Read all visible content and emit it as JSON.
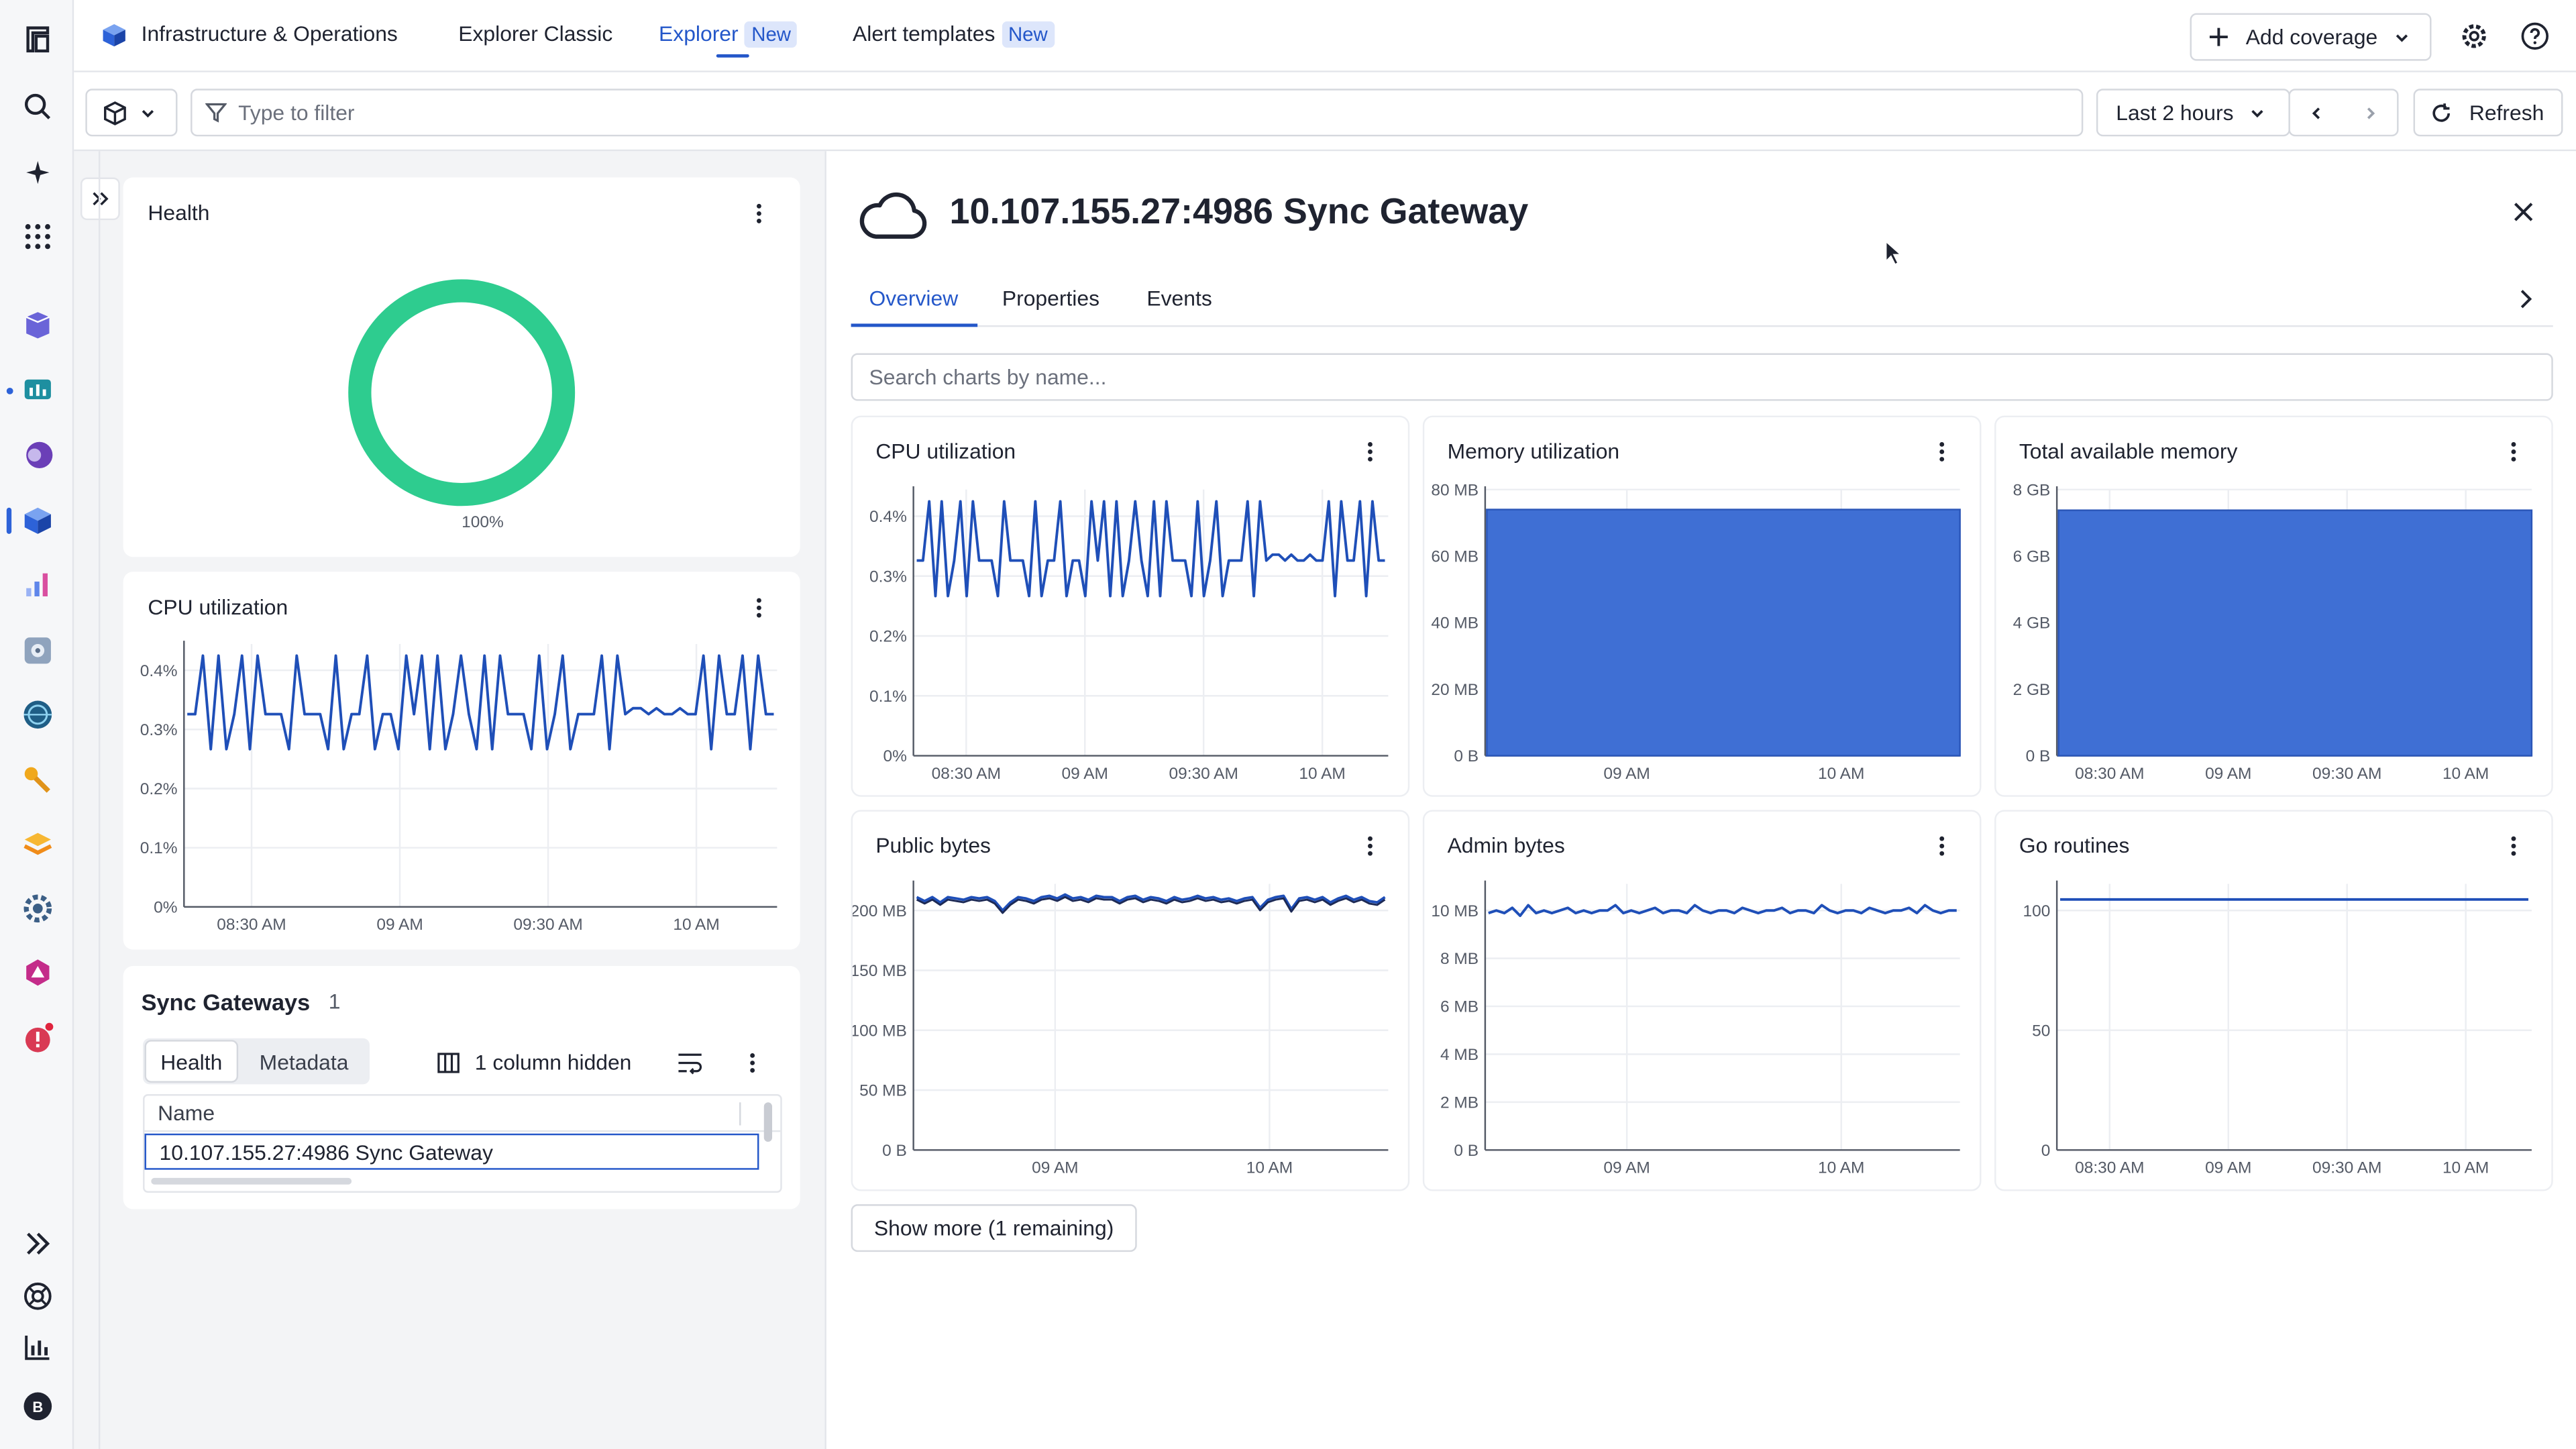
{
  "header": {
    "app_title": "Infrastructure & Operations",
    "tabs": [
      {
        "label": "Explorer Classic",
        "badge": ""
      },
      {
        "label": "Explorer",
        "badge": "New"
      },
      {
        "label": "Alert templates",
        "badge": "New"
      }
    ],
    "add_coverage_label": "Add coverage"
  },
  "filterbar": {
    "placeholder": "Type to filter",
    "timeframe": "Last 2 hours",
    "refresh_label": "Refresh"
  },
  "left": {
    "health_title": "Health",
    "health_percent": "100%",
    "health_value": 100,
    "cpu_title": "CPU utilization",
    "table_title": "Sync Gateways",
    "table_count": "1",
    "table_tabs": [
      "Health",
      "Metadata"
    ],
    "hidden_columns": "1 column hidden",
    "column_name": "Name",
    "rows": [
      "10.107.155.27:4986 Sync Gateway"
    ]
  },
  "detail": {
    "title": "10.107.155.27:4986 Sync Gateway",
    "tabs": [
      "Overview",
      "Properties",
      "Events"
    ],
    "search_placeholder": "Search charts by name...",
    "show_more": "Show more (1 remaining)"
  },
  "colors": {
    "accent": "#2457c9",
    "series_line": "#1f4fb8",
    "area_fill": "#3f6fd4",
    "health_ok": "#2ecc8f"
  },
  "chart_data": [
    {
      "id": "left-cpu",
      "type": "line",
      "title": "CPU utilization",
      "ylabels": [
        "0.4%",
        "0.3%",
        "0.2%",
        "0.1%",
        "0%"
      ],
      "xlabels": [
        "08:30 AM",
        "09 AM",
        "09:30 AM",
        "10 AM"
      ],
      "ylim": [
        0,
        0.45
      ],
      "values": [
        0.33,
        0.33,
        0.43,
        0.27,
        0.43,
        0.27,
        0.33,
        0.43,
        0.27,
        0.43,
        0.33,
        0.33,
        0.33,
        0.27,
        0.43,
        0.33,
        0.33,
        0.33,
        0.27,
        0.43,
        0.27,
        0.33,
        0.33,
        0.43,
        0.27,
        0.33,
        0.33,
        0.27,
        0.43,
        0.33,
        0.43,
        0.27,
        0.43,
        0.27,
        0.33,
        0.43,
        0.33,
        0.27,
        0.43,
        0.27,
        0.43,
        0.33,
        0.33,
        0.33,
        0.27,
        0.43,
        0.27,
        0.33,
        0.43,
        0.27,
        0.33,
        0.33,
        0.33,
        0.43,
        0.27,
        0.43,
        0.33,
        0.34,
        0.34,
        0.33,
        0.34,
        0.33,
        0.33,
        0.34,
        0.33,
        0.33,
        0.43,
        0.27,
        0.43,
        0.33,
        0.33,
        0.43,
        0.27,
        0.43,
        0.33,
        0.33
      ]
    },
    {
      "id": "cpu",
      "type": "line",
      "title": "CPU utilization",
      "ylabels": [
        "0.4%",
        "0.3%",
        "0.2%",
        "0.1%",
        "0%"
      ],
      "xlabels": [
        "08:30 AM",
        "09 AM",
        "09:30 AM",
        "10 AM"
      ],
      "ylim": [
        0,
        0.45
      ],
      "values": [
        0.33,
        0.33,
        0.43,
        0.27,
        0.43,
        0.27,
        0.33,
        0.43,
        0.27,
        0.43,
        0.33,
        0.33,
        0.33,
        0.27,
        0.43,
        0.33,
        0.33,
        0.33,
        0.27,
        0.43,
        0.27,
        0.33,
        0.33,
        0.43,
        0.27,
        0.33,
        0.33,
        0.27,
        0.43,
        0.33,
        0.43,
        0.27,
        0.43,
        0.27,
        0.33,
        0.43,
        0.33,
        0.27,
        0.43,
        0.27,
        0.43,
        0.33,
        0.33,
        0.33,
        0.27,
        0.43,
        0.27,
        0.33,
        0.43,
        0.27,
        0.33,
        0.33,
        0.33,
        0.43,
        0.27,
        0.43,
        0.33,
        0.34,
        0.34,
        0.33,
        0.34,
        0.33,
        0.33,
        0.34,
        0.33,
        0.33,
        0.43,
        0.27,
        0.43,
        0.33,
        0.33,
        0.43,
        0.27,
        0.43,
        0.33,
        0.33
      ]
    },
    {
      "id": "memory",
      "type": "area",
      "title": "Memory utilization",
      "ylabels": [
        "80 MB",
        "60 MB",
        "40 MB",
        "20 MB",
        "0 B"
      ],
      "xlabels": [
        "09 AM",
        "10 AM"
      ],
      "ylim": [
        0,
        80
      ],
      "value": 74
    },
    {
      "id": "total-memory",
      "type": "area",
      "title": "Total available memory",
      "ylabels": [
        "8 GB",
        "6 GB",
        "4 GB",
        "2 GB",
        "0 B"
      ],
      "xlabels": [
        "08:30 AM",
        "09 AM",
        "09:30 AM",
        "10 AM"
      ],
      "ylim": [
        0,
        9
      ],
      "value": 8.3
    },
    {
      "id": "public-bytes",
      "type": "line",
      "title": "Public bytes",
      "ylabels": [
        "200 MB",
        "150 MB",
        "100 MB",
        "50 MB",
        "0 B"
      ],
      "xlabels": [
        "09 AM",
        "10 AM"
      ],
      "ylim": [
        0,
        200
      ],
      "values": [
        190,
        187,
        190,
        186,
        190,
        189,
        188,
        190,
        189,
        190,
        187,
        180,
        186,
        190,
        189,
        187,
        190,
        191,
        189,
        192,
        189,
        190,
        188,
        191,
        190,
        190,
        187,
        190,
        191,
        188,
        190,
        189,
        187,
        190,
        188,
        189,
        191,
        189,
        190,
        188,
        189,
        187,
        189,
        190,
        182,
        188,
        190,
        191,
        181,
        189,
        190,
        188,
        190,
        186,
        189,
        191,
        188,
        190,
        187,
        186,
        190
      ]
    },
    {
      "id": "admin-bytes",
      "type": "line",
      "title": "Admin bytes",
      "ylabels": [
        "10 MB",
        "8 MB",
        "6 MB",
        "4 MB",
        "2 MB",
        "0 B"
      ],
      "xlabels": [
        "09 AM",
        "10 AM"
      ],
      "ylim": [
        0,
        10
      ],
      "values": [
        8.9,
        9.0,
        8.9,
        9.1,
        8.8,
        9.2,
        8.9,
        9.0,
        8.9,
        9.0,
        9.1,
        8.9,
        9.0,
        8.9,
        9.0,
        9.0,
        9.2,
        8.9,
        9.0,
        8.9,
        9.0,
        9.1,
        8.9,
        9.0,
        9.0,
        8.9,
        9.2,
        9.0,
        8.9,
        9.0,
        9.0,
        8.9,
        9.1,
        9.0,
        8.9,
        9.0,
        9.0,
        9.1,
        8.9,
        9.0,
        9.0,
        8.9,
        9.2,
        9.0,
        8.9,
        9.0,
        9.0,
        8.9,
        9.1,
        9.0,
        8.9,
        9.0,
        9.0,
        9.1,
        8.9,
        9.2,
        9.0,
        8.9,
        9.0,
        9.0
      ]
    },
    {
      "id": "go-routines",
      "type": "line",
      "title": "Go routines",
      "ylabels": [
        "100",
        "50",
        "0"
      ],
      "xlabels": [
        "08:30 AM",
        "09 AM",
        "09:30 AM",
        "10 AM"
      ],
      "ylim": [
        0,
        136
      ],
      "values": [
        128,
        128
      ]
    }
  ]
}
